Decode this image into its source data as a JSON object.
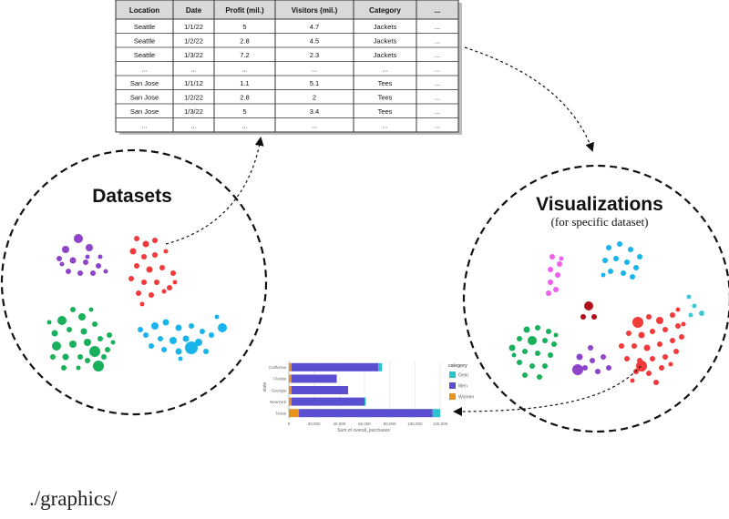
{
  "table": {
    "headers": [
      "Location",
      "Date",
      "Profit (mil.)",
      "Visitors (mil.)",
      "Category",
      "..."
    ],
    "rows": [
      [
        "Seattle",
        "1/1/22",
        "5",
        "4.7",
        "Jackets",
        "..."
      ],
      [
        "Seattle",
        "1/2/22",
        "2.8",
        "4.5",
        "Jackets",
        "..."
      ],
      [
        "Seattle",
        "1/3/22",
        "7.2",
        "2.3",
        "Jackets",
        "..."
      ],
      [
        "...",
        "...",
        "...",
        "...",
        "...",
        "..."
      ],
      [
        "San Jose",
        "1/1/12",
        "1.1",
        "5.1",
        "Tees",
        "..."
      ],
      [
        "San Jose",
        "1/2/22",
        "2.8",
        "2",
        "Tees",
        "..."
      ],
      [
        "San Jose",
        "1/3/22",
        "5",
        "3.4",
        "Tees",
        "..."
      ],
      [
        "...",
        "...",
        "...",
        "...",
        "...",
        "..."
      ]
    ]
  },
  "datasets_label": "Datasets",
  "visualizations_label": "Visualizations",
  "visualizations_sublabel": "(for specific dataset)",
  "path_label": "./graphics/",
  "colors": {
    "purple": "#8e44c9",
    "red": "#f23a3a",
    "green": "#18b05a",
    "cyan": "#19b4ec",
    "magenta": "#f05ef0",
    "darkred": "#b0101a",
    "teal": "#3ec9d6",
    "bar_gear": "#2bc4cc",
    "bar_men": "#5a4fd1",
    "bar_women": "#e8921e"
  },
  "chart_data": {
    "type": "bar",
    "orientation": "horizontal",
    "stacked": true,
    "categories": [
      "California",
      "Florida",
      "Georgia",
      "NewYork",
      "Texas"
    ],
    "series": [
      {
        "name": "Women",
        "values": [
          2000,
          2000,
          2000,
          2000,
          8000
        ]
      },
      {
        "name": "Men",
        "values": [
          69000,
          36000,
          45000,
          58000,
          106000
        ]
      },
      {
        "name": "Gear",
        "values": [
          3000,
          0,
          0,
          1000,
          6000
        ]
      }
    ],
    "xlabel": "Sum of overall_purchases",
    "ylabel": "state",
    "legend_title": "category",
    "legend_entries": [
      "Gear",
      "Men",
      "Women"
    ],
    "xticks": [
      "0",
      "20,000",
      "40,000",
      "60,000",
      "80,000",
      "100,000",
      "120,000"
    ],
    "xlim": [
      0,
      120000
    ],
    "grid": true,
    "legend_position": "right"
  }
}
